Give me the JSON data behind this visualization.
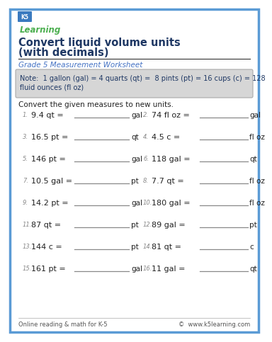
{
  "title_line1": "Convert liquid volume units",
  "title_line2": "(with decimals)",
  "subtitle": "Grade 5 Measurement Worksheet",
  "note_line1": "Note:  1 gallon (gal) = 4 quarts (qt) =  8 pints (pt) = 16 cups (c) = 128",
  "note_line2": "fluid ounces (fl oz)",
  "instruction": "Convert the given measures to new units.",
  "problems": [
    {
      "num": "1.",
      "expr": "9.4 qt =",
      "unit": "gal"
    },
    {
      "num": "2.",
      "expr": "74 fl oz =",
      "unit": "gal"
    },
    {
      "num": "3.",
      "expr": "16.5 pt =",
      "unit": "qt"
    },
    {
      "num": "4.",
      "expr": "4.5 c =",
      "unit": "fl oz"
    },
    {
      "num": "5.",
      "expr": "146 pt =",
      "unit": "gal"
    },
    {
      "num": "6.",
      "expr": "118 gal =",
      "unit": "qt"
    },
    {
      "num": "7.",
      "expr": "10.5 gal =",
      "unit": "pt"
    },
    {
      "num": "8.",
      "expr": "7.7 qt =",
      "unit": "fl oz"
    },
    {
      "num": "9.",
      "expr": "14.2 pt =",
      "unit": "gal"
    },
    {
      "num": "10.",
      "expr": "180 gal =",
      "unit": "fl oz"
    },
    {
      "num": "11.",
      "expr": "87 qt =",
      "unit": "pt"
    },
    {
      "num": "12.",
      "expr": "89 gal =",
      "unit": "pt"
    },
    {
      "num": "13.",
      "expr": "144 c =",
      "unit": "pt"
    },
    {
      "num": "14.",
      "expr": "81 qt =",
      "unit": "c"
    },
    {
      "num": "15.",
      "expr": "161 pt =",
      "unit": "gal"
    },
    {
      "num": "16.",
      "expr": "11 gal =",
      "unit": "qt"
    }
  ],
  "footer_left": "Online reading & math for K-5",
  "footer_right": "©  www.k5learning.com",
  "border_color": "#5b9bd5",
  "title_color": "#1f3864",
  "subtitle_color": "#4472c4",
  "note_bg": "#d6d6d6",
  "note_text_color": "#1f3864",
  "problem_num_color": "#888888",
  "problem_color": "#222222",
  "line_color": "#888888",
  "footer_color": "#555555",
  "bg_color": "#ffffff"
}
